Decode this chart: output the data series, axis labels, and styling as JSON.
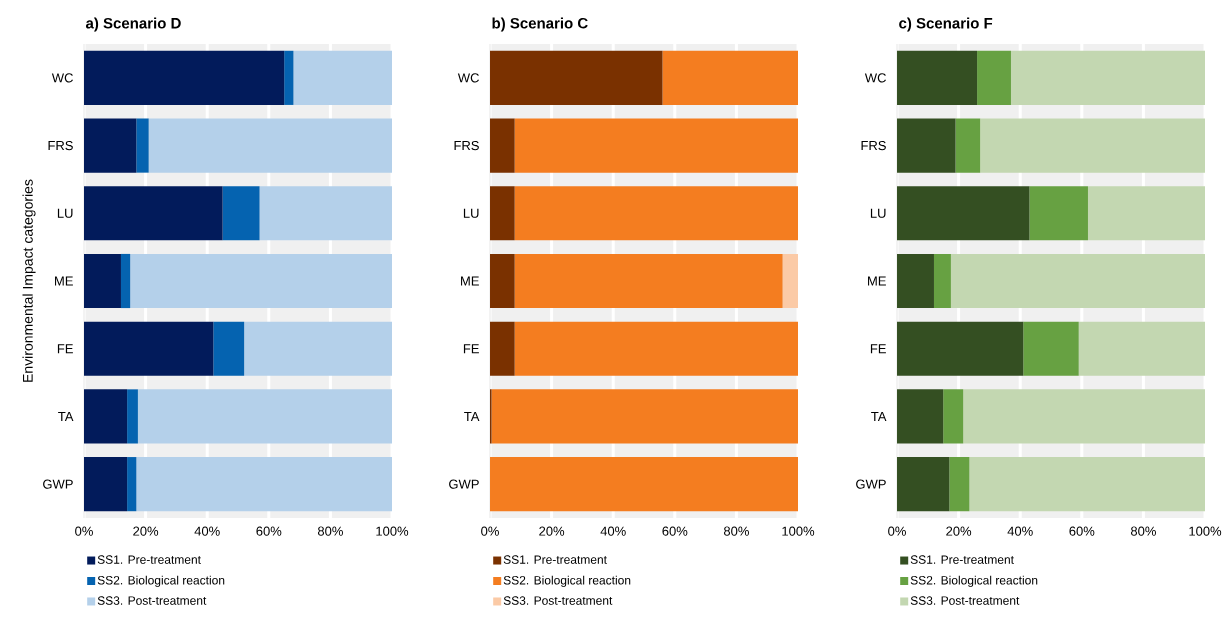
{
  "chart_data": [
    {
      "type": "bar",
      "orientation": "horizontal",
      "stacked": true,
      "title": "a)   Scenario D",
      "ylabel": "Environmental Impact categories",
      "categories": [
        "WC",
        "FRS",
        "LU",
        "ME",
        "FE",
        "TA",
        "GWP"
      ],
      "series": [
        {
          "name": "SS1. Pre-treatment",
          "color": "#021b5b",
          "values": [
            65,
            17,
            45,
            12,
            42,
            14,
            14
          ]
        },
        {
          "name": "SS2. Biological reaction",
          "color": "#0563b0",
          "values": [
            3,
            4,
            12,
            3,
            10,
            3.5,
            3
          ]
        },
        {
          "name": "SS3. Post-treatment",
          "color": "#b4d0ea",
          "values": [
            32,
            79,
            43,
            85,
            48,
            82.5,
            83
          ]
        }
      ],
      "xlim": [
        0,
        100
      ],
      "xticks": [
        {
          "value": 0,
          "label": "0%"
        },
        {
          "value": 20,
          "label": "20%"
        },
        {
          "value": 40,
          "label": "40%"
        },
        {
          "value": 60,
          "label": "60%"
        },
        {
          "value": 80,
          "label": "80%"
        },
        {
          "value": 100,
          "label": "100%"
        }
      ],
      "grid": "x",
      "legend": "bottom"
    },
    {
      "type": "bar",
      "orientation": "horizontal",
      "stacked": true,
      "title": "b)   Scenario C",
      "categories": [
        "WC",
        "FRS",
        "LU",
        "ME",
        "FE",
        "TA",
        "GWP"
      ],
      "series": [
        {
          "name": "SS1. Pre-treatment",
          "color": "#7a3100",
          "values": [
            56,
            8,
            8,
            8,
            8,
            0.5,
            0
          ]
        },
        {
          "name": "SS2. Biological reaction",
          "color": "#f47d20",
          "values": [
            44,
            92,
            92,
            87,
            92,
            99.5,
            100
          ]
        },
        {
          "name": "SS3. Post-treatment",
          "color": "#fbcaa6",
          "values": [
            0,
            0,
            0,
            5,
            0,
            0,
            0
          ]
        }
      ],
      "xlim": [
        0,
        100
      ],
      "xticks": [
        {
          "value": 0,
          "label": "0%"
        },
        {
          "value": 20,
          "label": "20%"
        },
        {
          "value": 40,
          "label": "40%"
        },
        {
          "value": 60,
          "label": "60%"
        },
        {
          "value": 80,
          "label": "80%"
        },
        {
          "value": 100,
          "label": "100%"
        }
      ],
      "grid": "x",
      "legend": "bottom"
    },
    {
      "type": "bar",
      "orientation": "horizontal",
      "stacked": true,
      "title": "c)   Scenario F",
      "categories": [
        "WC",
        "FRS",
        "LU",
        "ME",
        "FE",
        "TA",
        "GWP"
      ],
      "series": [
        {
          "name": "SS1. Pre-treatment",
          "color": "#344f22",
          "values": [
            26,
            19,
            43,
            12,
            41,
            15,
            17
          ]
        },
        {
          "name": "SS2. Biological reaction",
          "color": "#67a142",
          "values": [
            11,
            8,
            19,
            5.5,
            18,
            6.5,
            6.5
          ]
        },
        {
          "name": "SS3. Post-treatment",
          "color": "#c3d7b1",
          "values": [
            63,
            73,
            38,
            82.5,
            41,
            78.5,
            76.5
          ]
        }
      ],
      "xlim": [
        0,
        100
      ],
      "xticks": [
        {
          "value": 0,
          "label": "0%"
        },
        {
          "value": 20,
          "label": "20%"
        },
        {
          "value": 40,
          "label": "40%"
        },
        {
          "value": 60,
          "label": "60%"
        },
        {
          "value": 80,
          "label": "80%"
        },
        {
          "value": 100,
          "label": "100%"
        }
      ],
      "grid": "x",
      "legend": "bottom"
    }
  ]
}
